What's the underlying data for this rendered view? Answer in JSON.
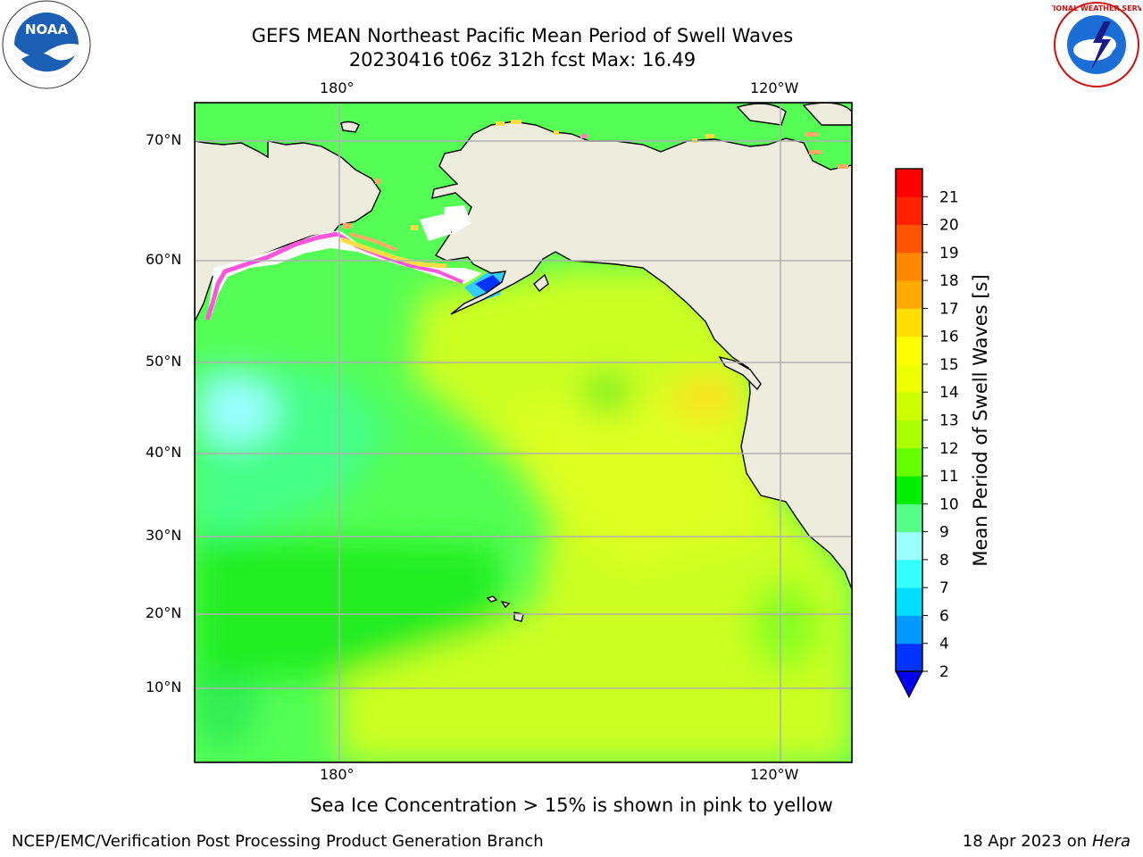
{
  "title": {
    "line1": "GEFS MEAN Northeast Pacific Mean Period of Swell Waves",
    "line2": "20230416 t06z 312h fcst   Max: 16.49"
  },
  "map": {
    "lon_labels": [
      "180°",
      "120°W"
    ],
    "lat_labels": [
      "70°N",
      "60°N",
      "50°N",
      "40°N",
      "30°N",
      "20°N",
      "10°N"
    ],
    "colors": {
      "land": "#eeecdc",
      "grid": "#b0b0b0",
      "sea_ice_pink": "#ff55dd",
      "sea_ice_yellow": "#ffdd44",
      "sea_ice_orange": "#ffaa66"
    }
  },
  "colorbar": {
    "label": "Mean Period of Swell Waves [s]",
    "ticks": [
      "2",
      "4",
      "6",
      "7",
      "8",
      "9",
      "10",
      "11",
      "12",
      "13",
      "14",
      "15",
      "16",
      "17",
      "18",
      "19",
      "20",
      "21"
    ],
    "colors": [
      "#0033ff",
      "#0099ff",
      "#00ddff",
      "#33ffff",
      "#99ffff",
      "#55ff88",
      "#00ee00",
      "#66ff00",
      "#aaff00",
      "#ccff00",
      "#eeff00",
      "#ffff00",
      "#ffdd00",
      "#ffaa00",
      "#ff8800",
      "#ff5500",
      "#ff2200",
      "#ff0000"
    ],
    "under_color": "#0000ee"
  },
  "caption": "Sea Ice Concentration > 15% is shown in pink to yellow",
  "footer": {
    "left": "NCEP/EMC/Verification Post Processing Product Generation Branch",
    "right_prefix": "18 Apr 2023 on ",
    "right_host": "Hera"
  },
  "logos": {
    "noaa_text": "NOAA",
    "nws_ring_text": "NATIONAL WEATHER SERVICE"
  }
}
